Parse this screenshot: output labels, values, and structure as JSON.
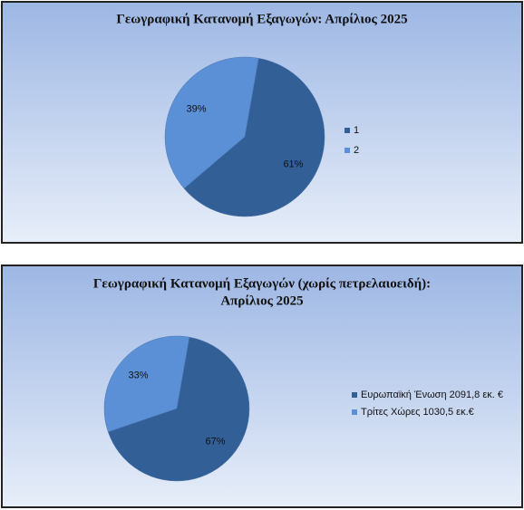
{
  "chart_data": [
    {
      "type": "pie",
      "title": [
        "Γεωγραφική Κατανομή Εξαγωγών: Απρίλιος 2025"
      ],
      "categories": [
        "1",
        "2"
      ],
      "values": [
        61,
        39
      ],
      "value_labels": [
        "61%",
        "39%"
      ],
      "colors": [
        "#335f97",
        "#5b8fd6"
      ],
      "legend": "right"
    },
    {
      "type": "pie",
      "title": [
        "Γεωγραφική Κατανομή Εξαγωγών (χωρίς πετρελαιοειδή):",
        "Απρίλιος 2025"
      ],
      "categories": [
        "Ευρωπαϊκή Ένωση 2091,8 εκ. €",
        "Τρίτες Χώρες 1030,5 εκ.€"
      ],
      "values": [
        67,
        33
      ],
      "value_labels": [
        "67%",
        "33%"
      ],
      "colors": [
        "#335f97",
        "#5b8fd6"
      ],
      "legend": "right"
    }
  ]
}
